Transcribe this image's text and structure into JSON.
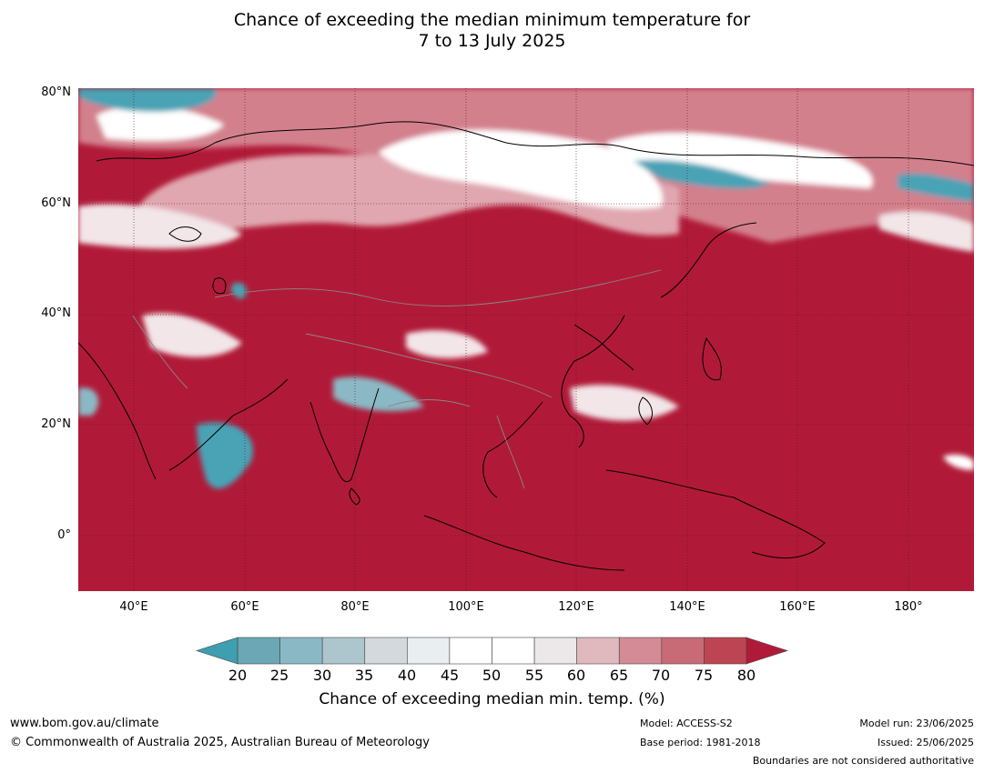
{
  "title": {
    "line1": "Chance of exceeding the median minimum temperature for",
    "line2": "7 to 13 July 2025"
  },
  "latitude_labels": [
    "80°N",
    "60°N",
    "40°N",
    "20°N",
    "0°"
  ],
  "longitude_labels": [
    "40°E",
    "60°E",
    "80°E",
    "100°E",
    "120°E",
    "140°E",
    "160°E",
    "180°"
  ],
  "colorbar": {
    "ticks": [
      "20",
      "25",
      "30",
      "35",
      "40",
      "45",
      "50",
      "55",
      "60",
      "65",
      "70",
      "75",
      "80"
    ],
    "label": "Chance of exceeding median min. temp. (%)",
    "below_color": "#3d9fb0",
    "above_color": "#b01a38",
    "colors": [
      "#6ba7b4",
      "#8ab9c5",
      "#adc6cd",
      "#d3d9dc",
      "#e9eef0",
      "#ffffff",
      "#ffffff",
      "#ece8ea",
      "#e0b9bf",
      "#d48b95",
      "#c86b77",
      "#bd4553"
    ]
  },
  "map_colors": {
    "dominant": "#b01a38",
    "mid": "#d3808d",
    "low": "#f2e6e8",
    "cool": "#4aa3b5",
    "coast": "#000000",
    "border": "#888888"
  },
  "footer": {
    "url": "www.bom.gov.au/climate",
    "copyright": "© Commonwealth of Australia 2025, Australian Bureau of Meteorology",
    "model": "Model: ACCESS-S2",
    "base_period": "Base period: 1981-2018",
    "model_run": "Model run: 23/06/2025",
    "issued": "Issued: 25/06/2025",
    "disclaimer": "Boundaries are not considered authoritative"
  }
}
